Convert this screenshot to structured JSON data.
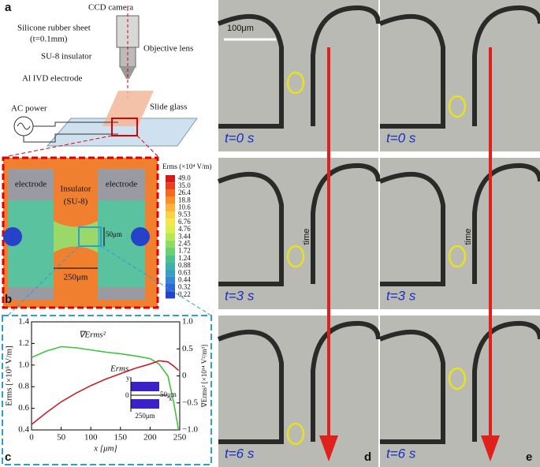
{
  "panel_a": {
    "label": "a",
    "ccd_camera": "CCD camera",
    "silicone_sheet": "Silicone rubber sheet",
    "sheet_thickness": "(t=0.1mm)",
    "objective_lens": "Objective lens",
    "su8_insulator": "SU-8 insulator",
    "electrode": "Al IVD electrode",
    "ac_power": "AC power",
    "slide_glass": "Slide glass"
  },
  "panel_b": {
    "label": "b",
    "electrode_left": "electrode",
    "insulator": "Insulator",
    "insulator_material": "(SU-8)",
    "electrode_right": "electrode",
    "gap_width": "50μm",
    "length": "250μm",
    "colorbar": {
      "title": "Erms (×10⁴ V/m)",
      "levels": [
        "49.0",
        "35.0",
        "26.4",
        "18.8",
        "10.6",
        "9.53",
        "6.76",
        "4.76",
        "3.44",
        "2.45",
        "1.72",
        "1.24",
        "0.88",
        "0.63",
        "0.44",
        "0.32",
        "0.22"
      ],
      "colors": [
        "#d7191c",
        "#e8411f",
        "#f26b21",
        "#f7922a",
        "#fbb33a",
        "#fdd049",
        "#f5e64d",
        "#d9ee4f",
        "#b4e858",
        "#8fdc63",
        "#6ccf74",
        "#4ec28b",
        "#3fb1a6",
        "#3a9ec1",
        "#3686d3",
        "#2f66d6",
        "#2443c9"
      ]
    }
  },
  "chart_data": {
    "type": "line",
    "panel_label": "c",
    "x": [
      0,
      25,
      50,
      75,
      100,
      125,
      150,
      175,
      200,
      215,
      230,
      240,
      248
    ],
    "series": [
      {
        "name": "∇Erms²",
        "color": "#3cc43c",
        "axis": "y2",
        "values": [
          0.34,
          0.46,
          0.54,
          0.52,
          0.48,
          0.44,
          0.41,
          0.37,
          0.32,
          0.22,
          0.0,
          -0.5,
          -1.0
        ]
      },
      {
        "name": "Erms",
        "color": "#c8202a",
        "values": [
          0.45,
          0.56,
          0.66,
          0.74,
          0.81,
          0.87,
          0.92,
          0.97,
          1.01,
          1.04,
          1.03,
          0.99,
          0.95
        ]
      }
    ],
    "xlim": [
      0,
      250
    ],
    "xticks": [
      0,
      50,
      100,
      150,
      200,
      250
    ],
    "ylim": [
      0.4,
      1.4
    ],
    "yticks": [
      0.4,
      0.6,
      0.8,
      {
        "value": 1,
        "label": "1.0"
      },
      1.2,
      1.4
    ],
    "y2lim": [
      -1,
      1
    ],
    "y2ticks": [
      {
        "value": -1,
        "label": "−1.0"
      },
      {
        "value": -0.5,
        "label": "−0.5"
      },
      0,
      0.5,
      {
        "value": 1,
        "label": "1.0"
      }
    ],
    "xlabel": "x [μm]",
    "ylabel": "Erms [×10⁵ V/m]",
    "y2label": "∇Erms² [×10¹⁴ V²/m³]",
    "inset": {
      "y_axis": "y",
      "x_axis": "x",
      "origin": "0",
      "gap": "50μm",
      "length": "250μm"
    }
  },
  "micrographs": {
    "scale_bar": "100μm",
    "time_arrow": "time",
    "panels": [
      {
        "label": "d",
        "frames": [
          "t=0 s",
          "t=3 s",
          "t=6 s"
        ]
      },
      {
        "label": "e",
        "frames": [
          "t=0 s",
          "t=3 s",
          "t=6 s"
        ]
      }
    ]
  }
}
